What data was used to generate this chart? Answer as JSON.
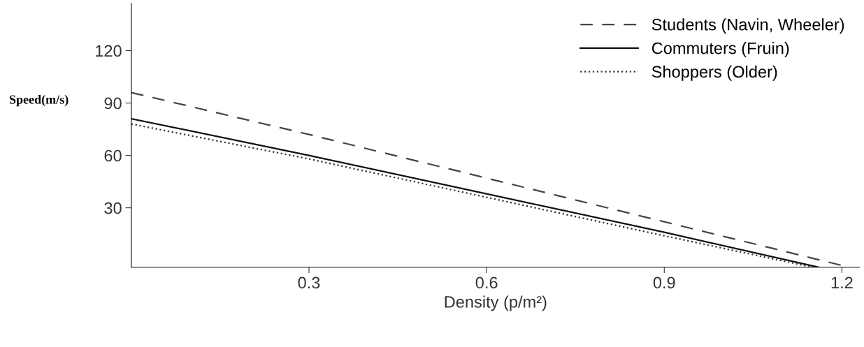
{
  "chart_data": {
    "type": "line",
    "xlabel": "Density (p/m²)",
    "ylabel": "Speed(m/s)",
    "xlim": [
      0,
      1.23
    ],
    "ylim": [
      -4,
      147
    ],
    "xticks": [
      0.3,
      0.6,
      0.9,
      1.2
    ],
    "yticks": [
      30,
      60,
      90,
      120
    ],
    "grid": false,
    "legend": "top right",
    "marker": "none",
    "series": [
      {
        "name": "Students (Navin, Wheeler)",
        "color": "#444444",
        "line_style": "dashed",
        "x": [
          0,
          0.3,
          0.6,
          0.9,
          1.2
        ],
        "values": [
          96,
          72,
          47,
          22,
          -3
        ]
      },
      {
        "name": "Commuters (Fruin)",
        "color": "#111111",
        "line_style": "solid",
        "x": [
          0,
          0.3,
          0.6,
          0.9,
          1.16
        ],
        "values": [
          81,
          60,
          38,
          16,
          -4
        ]
      },
      {
        "name": "Shoppers (Older)",
        "color": "#333333",
        "line_style": "dotted",
        "x": [
          0,
          0.3,
          0.6,
          0.9,
          1.15
        ],
        "values": [
          78,
          58,
          36,
          14,
          -4
        ]
      }
    ]
  }
}
